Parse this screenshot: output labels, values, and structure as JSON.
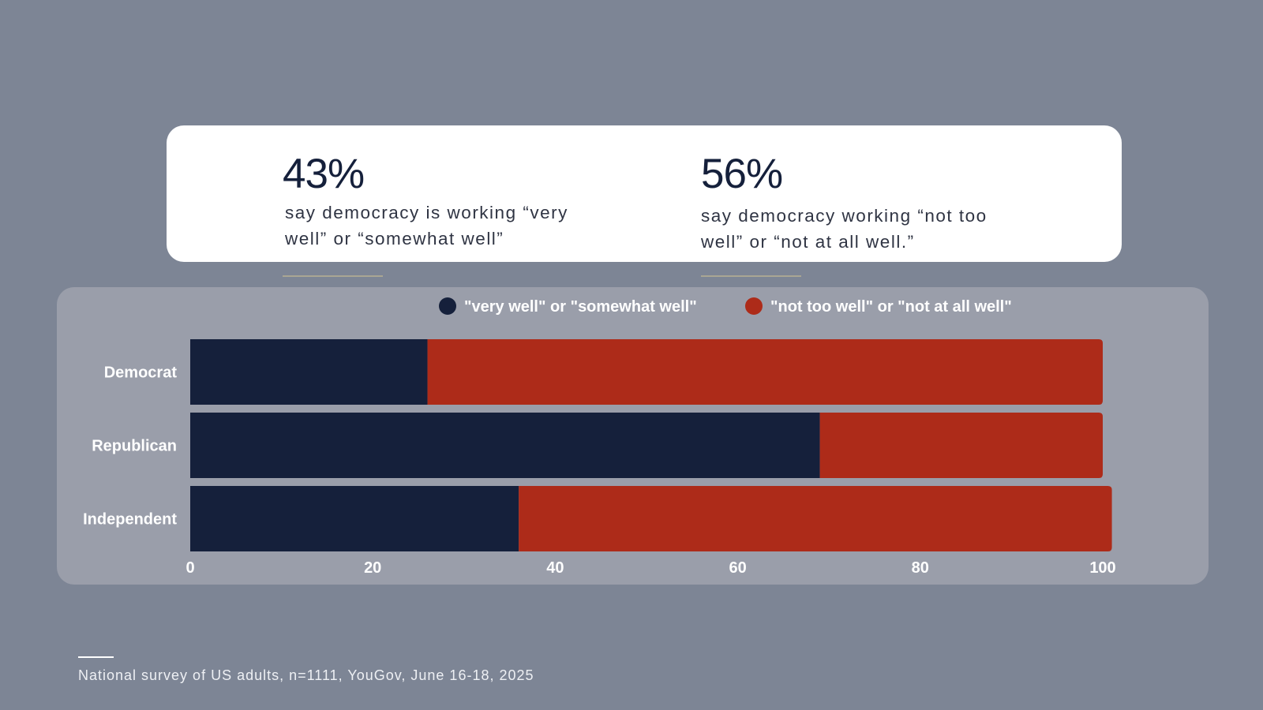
{
  "stats": {
    "left": {
      "value": "43%",
      "desc_line1": "say democracy is working “very",
      "desc_line2": "well” or “somewhat well”"
    },
    "right": {
      "value": "56%",
      "desc_line1": "say democracy working “not too",
      "desc_line2": "well” or “not at all well.”"
    }
  },
  "colors": {
    "positive": "#15203b",
    "negative": "#ad2b19",
    "label": "#ffffff"
  },
  "chart_data": {
    "type": "bar",
    "orientation": "horizontal",
    "stacked": true,
    "categories": [
      "Democrat",
      "Republican",
      "Independent"
    ],
    "series": [
      {
        "name": "\"very well\" or \"somewhat well\"",
        "values": [
          26,
          69,
          36
        ]
      },
      {
        "name": "\"not too well\" or \"not at all well\"",
        "values": [
          74,
          31,
          65
        ]
      }
    ],
    "xlim": [
      0,
      100
    ],
    "xticks": [
      "0",
      "20",
      "40",
      "60",
      "80",
      "100"
    ],
    "legend_position": "top",
    "grid": false
  },
  "footer": {
    "note": "National survey of US adults, n=1111, YouGov, June 16-18, 2025"
  }
}
